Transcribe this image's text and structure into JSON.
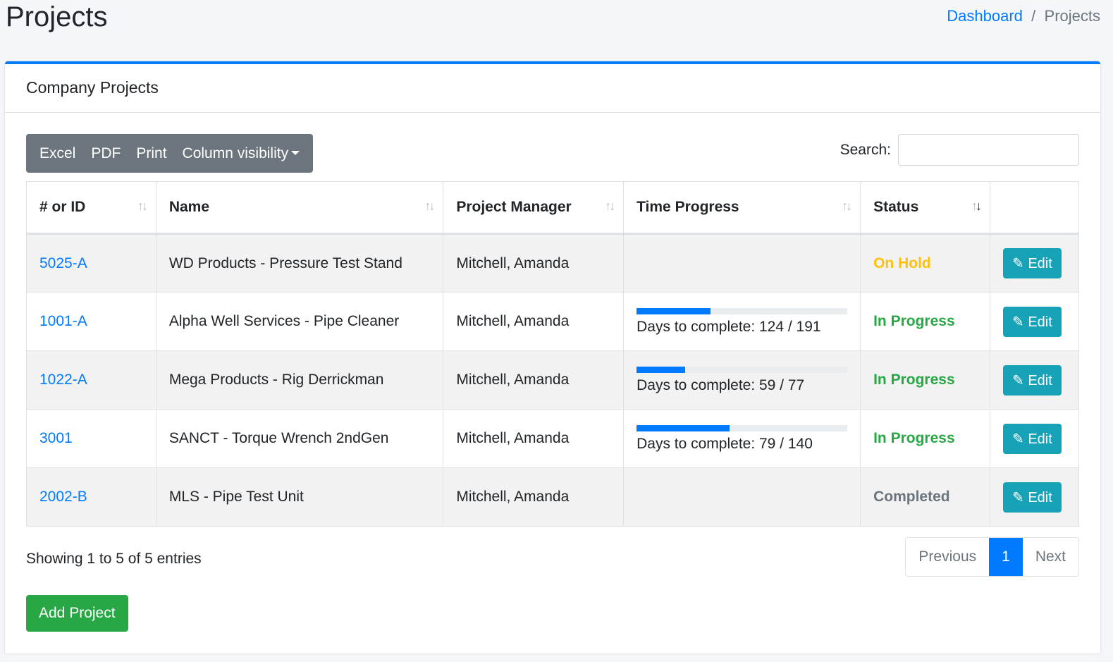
{
  "page": {
    "title": "Projects"
  },
  "breadcrumb": {
    "home": "Dashboard",
    "sep": "/",
    "current": "Projects"
  },
  "card": {
    "title": "Company Projects"
  },
  "toolbar": {
    "excel": "Excel",
    "pdf": "PDF",
    "print": "Print",
    "colvis": "Column visibility"
  },
  "search": {
    "label": "Search:",
    "value": ""
  },
  "columns": [
    "# or ID",
    "Name",
    "Project Manager",
    "Time Progress",
    "Status",
    ""
  ],
  "sort": {
    "active_column": "Status",
    "direction": "descending"
  },
  "rows": [
    {
      "id": "5025-A",
      "name": "WD Products - Pressure Test Stand",
      "manager": "Mitchell, Amanda",
      "progress": "",
      "progress_pct": null,
      "status": "On Hold",
      "status_color": "#ffc107",
      "edit": "Edit"
    },
    {
      "id": "1001-A",
      "name": "Alpha Well Services - Pipe Cleaner",
      "manager": "Mitchell, Amanda",
      "progress": "Days to complete: 124 / 191",
      "progress_pct": 35,
      "status": "In Progress",
      "status_color": "#28a745",
      "edit": "Edit"
    },
    {
      "id": "1022-A",
      "name": "Mega Products - Rig Derrickman",
      "manager": "Mitchell, Amanda",
      "progress": "Days to complete: 59 / 77",
      "progress_pct": 23,
      "status": "In Progress",
      "status_color": "#28a745",
      "edit": "Edit"
    },
    {
      "id": "3001",
      "name": "SANCT - Torque Wrench 2ndGen",
      "manager": "Mitchell, Amanda",
      "progress": "Days to complete: 79 / 140",
      "progress_pct": 44,
      "status": "In Progress",
      "status_color": "#28a745",
      "edit": "Edit"
    },
    {
      "id": "2002-B",
      "name": "MLS - Pipe Test Unit",
      "manager": "Mitchell, Amanda",
      "progress": "",
      "progress_pct": null,
      "status": "Completed",
      "status_color": "#6c757d",
      "edit": "Edit"
    }
  ],
  "footer": {
    "info": "Showing 1 to 5 of 5 entries",
    "prev": "Previous",
    "page": "1",
    "next": "Next",
    "add": "Add Project"
  }
}
